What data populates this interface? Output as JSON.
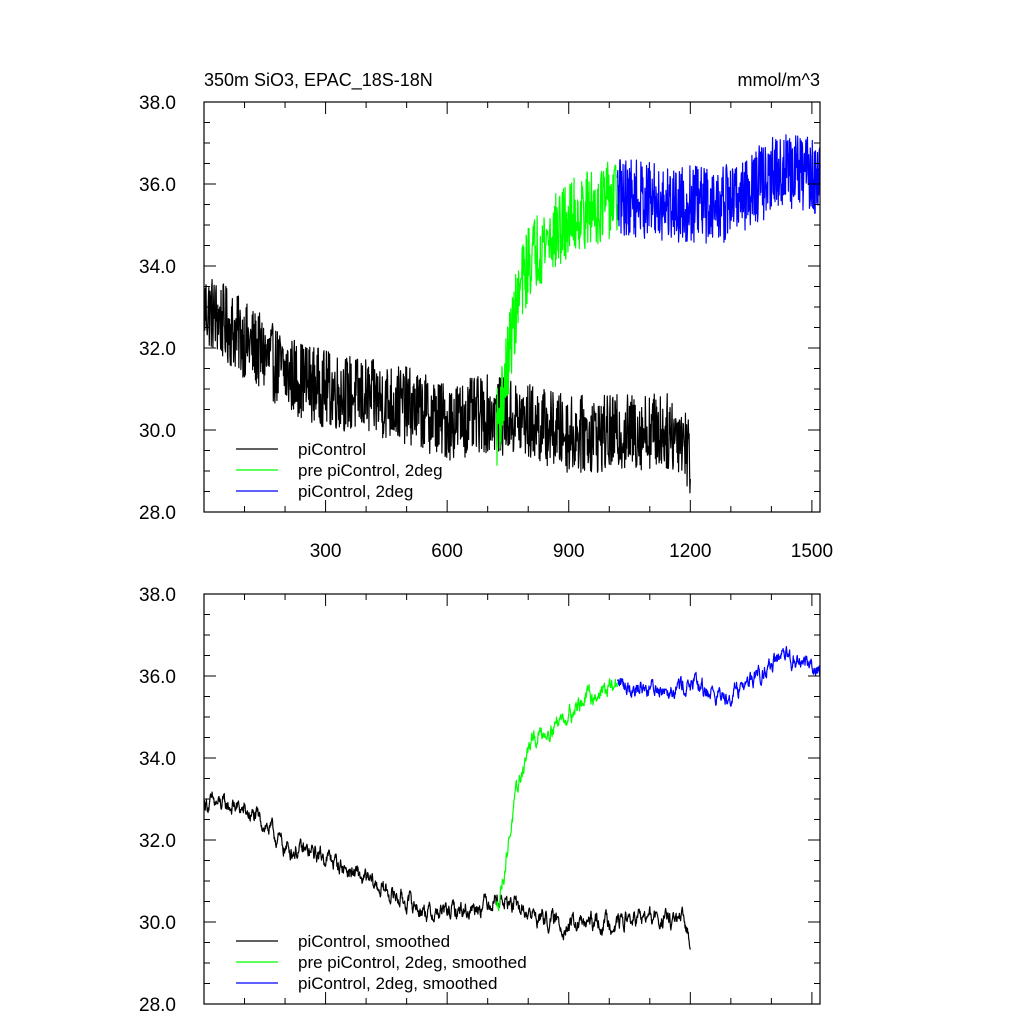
{
  "chart_data": [
    {
      "type": "line",
      "title": "350m SiO3, EPAC_18S-18N",
      "units": "mmol/m^3",
      "xlim": [
        0,
        1520
      ],
      "ylim": [
        28.0,
        38.0
      ],
      "xticks": [
        300,
        600,
        900,
        1200,
        1500
      ],
      "yticks": [
        "28.0",
        "30.0",
        "32.0",
        "34.0",
        "36.0",
        "38.0"
      ],
      "grid": false,
      "legend_position": "bottom-left",
      "noise": 0.95,
      "series": [
        {
          "name": "piControl",
          "color": "#000000",
          "x_start": 1,
          "x_end": 1200,
          "anchors": [
            [
              1,
              33.0
            ],
            [
              100,
              32.2
            ],
            [
              200,
              31.4
            ],
            [
              300,
              31.0
            ],
            [
              400,
              30.8
            ],
            [
              500,
              30.6
            ],
            [
              600,
              30.2
            ],
            [
              700,
              30.4
            ],
            [
              800,
              30.2
            ],
            [
              900,
              29.9
            ],
            [
              1000,
              29.9
            ],
            [
              1100,
              30.0
            ],
            [
              1180,
              29.9
            ],
            [
              1200,
              29.3
            ]
          ]
        },
        {
          "name": "pre piControl, 2deg",
          "color": "#00ff00",
          "x_start": 722,
          "x_end": 1020,
          "anchors": [
            [
              722,
              30.0
            ],
            [
              740,
              31.0
            ],
            [
              760,
              32.4
            ],
            [
              780,
              33.4
            ],
            [
              800,
              34.1
            ],
            [
              820,
              34.4
            ],
            [
              850,
              34.7
            ],
            [
              880,
              34.9
            ],
            [
              910,
              35.2
            ],
            [
              950,
              35.4
            ],
            [
              1000,
              35.6
            ],
            [
              1020,
              35.7
            ]
          ]
        },
        {
          "name": "piControl, 2deg",
          "color": "#0000ff",
          "x_start": 1020,
          "x_end": 1520,
          "anchors": [
            [
              1020,
              35.7
            ],
            [
              1100,
              35.6
            ],
            [
              1200,
              35.5
            ],
            [
              1280,
              35.5
            ],
            [
              1350,
              35.9
            ],
            [
              1420,
              36.3
            ],
            [
              1480,
              36.3
            ],
            [
              1520,
              36.1
            ]
          ]
        }
      ]
    },
    {
      "type": "line",
      "xlim": [
        0,
        1520
      ],
      "ylim": [
        28.0,
        38.0
      ],
      "xticks": [],
      "yticks": [
        "28.0",
        "30.0",
        "32.0",
        "34.0",
        "36.0",
        "38.0"
      ],
      "grid": false,
      "legend_position": "bottom-left",
      "noise": 0.25,
      "series": [
        {
          "name": "piControl, smoothed",
          "color": "#000000",
          "x_start": 1,
          "x_end": 1200,
          "anchors": [
            [
              1,
              32.9
            ],
            [
              80,
              32.8
            ],
            [
              150,
              32.4
            ],
            [
              200,
              31.8
            ],
            [
              300,
              31.6
            ],
            [
              400,
              31.0
            ],
            [
              500,
              30.5
            ],
            [
              560,
              30.2
            ],
            [
              650,
              30.3
            ],
            [
              720,
              30.6
            ],
            [
              800,
              30.2
            ],
            [
              900,
              29.9
            ],
            [
              1000,
              30.0
            ],
            [
              1100,
              30.1
            ],
            [
              1180,
              30.0
            ],
            [
              1200,
              29.6
            ]
          ]
        },
        {
          "name": "pre piControl, 2deg, smoothed",
          "color": "#00ff00",
          "x_start": 722,
          "x_end": 1020,
          "anchors": [
            [
              722,
              30.3
            ],
            [
              740,
              31.2
            ],
            [
              760,
              32.5
            ],
            [
              780,
              33.5
            ],
            [
              800,
              34.2
            ],
            [
              820,
              34.5
            ],
            [
              860,
              34.8
            ],
            [
              900,
              35.1
            ],
            [
              950,
              35.5
            ],
            [
              1000,
              35.7
            ],
            [
              1020,
              35.8
            ]
          ]
        },
        {
          "name": "piControl, 2deg, smoothed",
          "color": "#0000ff",
          "x_start": 1020,
          "x_end": 1520,
          "anchors": [
            [
              1020,
              35.8
            ],
            [
              1100,
              35.7
            ],
            [
              1200,
              35.8
            ],
            [
              1280,
              35.5
            ],
            [
              1330,
              35.8
            ],
            [
              1400,
              36.3
            ],
            [
              1440,
              36.4
            ],
            [
              1500,
              36.3
            ],
            [
              1520,
              36.1
            ]
          ]
        }
      ]
    }
  ]
}
